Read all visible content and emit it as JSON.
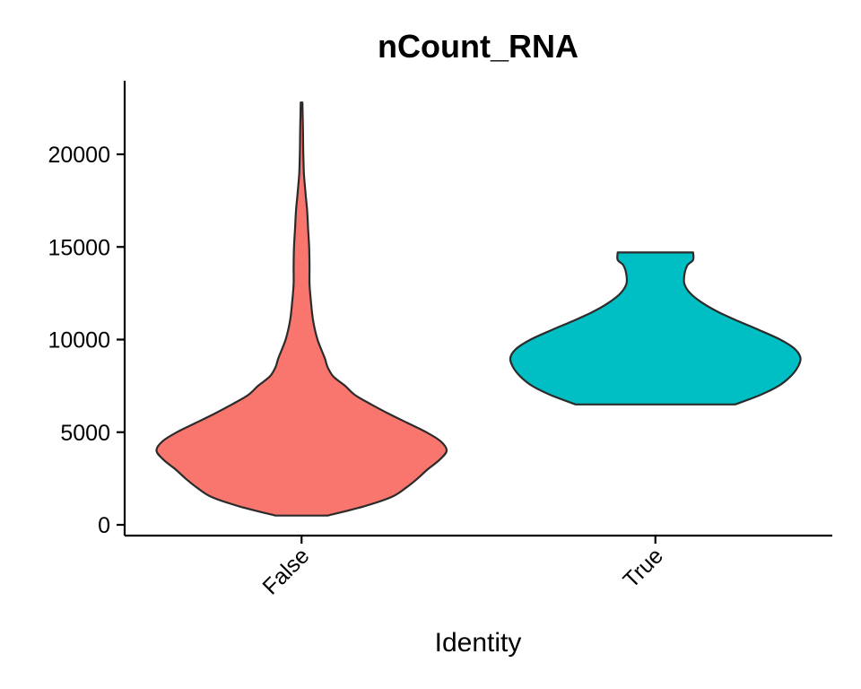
{
  "chart_data": {
    "type": "violin",
    "title": "nCount_RNA",
    "xlabel": "Identity",
    "ylabel": "",
    "ylim": [
      -500,
      23000
    ],
    "yticks": [
      0,
      5000,
      10000,
      15000,
      20000
    ],
    "ytick_labels": [
      "0",
      "5000",
      "10000",
      "15000",
      "20000"
    ],
    "categories": [
      "False",
      "True"
    ],
    "colors": {
      "False": "#F8766D",
      "True": "#00BFC4"
    },
    "legend": "none",
    "grid": false,
    "series": [
      {
        "category": "False",
        "min": 500,
        "max": 22800,
        "profile": [
          [
            500,
            0.18
          ],
          [
            1000,
            0.43
          ],
          [
            1500,
            0.62
          ],
          [
            2000,
            0.72
          ],
          [
            2500,
            0.8
          ],
          [
            3000,
            0.87
          ],
          [
            3500,
            0.95
          ],
          [
            4000,
            1.0
          ],
          [
            4500,
            0.96
          ],
          [
            5000,
            0.86
          ],
          [
            5500,
            0.73
          ],
          [
            6000,
            0.6
          ],
          [
            6500,
            0.48
          ],
          [
            7000,
            0.37
          ],
          [
            7500,
            0.3
          ],
          [
            8000,
            0.22
          ],
          [
            8500,
            0.18
          ],
          [
            9000,
            0.16
          ],
          [
            10000,
            0.11
          ],
          [
            11000,
            0.08
          ],
          [
            12000,
            0.065
          ],
          [
            13000,
            0.055
          ],
          [
            14000,
            0.055
          ],
          [
            15000,
            0.052
          ],
          [
            16000,
            0.045
          ],
          [
            17000,
            0.038
          ],
          [
            18000,
            0.026
          ],
          [
            19000,
            0.016
          ],
          [
            20000,
            0.012
          ],
          [
            21000,
            0.01
          ],
          [
            22000,
            0.008
          ],
          [
            22800,
            0.006
          ]
        ]
      },
      {
        "category": "True",
        "min": 6500,
        "max": 14700,
        "profile": [
          [
            6500,
            0.55
          ],
          [
            7000,
            0.72
          ],
          [
            7500,
            0.85
          ],
          [
            8000,
            0.93
          ],
          [
            8500,
            0.98
          ],
          [
            9000,
            1.0
          ],
          [
            9500,
            0.96
          ],
          [
            10000,
            0.86
          ],
          [
            10500,
            0.72
          ],
          [
            11000,
            0.57
          ],
          [
            11500,
            0.43
          ],
          [
            12000,
            0.32
          ],
          [
            12500,
            0.24
          ],
          [
            13000,
            0.2
          ],
          [
            13500,
            0.2
          ],
          [
            14000,
            0.22
          ],
          [
            14300,
            0.26
          ],
          [
            14700,
            0.26
          ]
        ]
      }
    ]
  }
}
